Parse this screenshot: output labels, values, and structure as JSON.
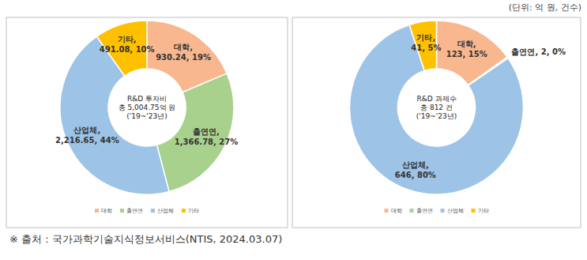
{
  "note": "(단위: 억 원, 건수)",
  "source": "※ 출처 : 국가과학기술지식정보서비스(NTIS, 2024.03.07)",
  "chart_data": [
    {
      "type": "pie",
      "center_text": [
        "R&D 투자비",
        "총 5,004.75억 원",
        "('19~'23년)"
      ],
      "categories": [
        "대학",
        "출연연",
        "산업체",
        "기타"
      ],
      "values": [
        930.24,
        1366.78,
        2216.65,
        491.08
      ],
      "value_labels": [
        "930.24",
        "1,366.78",
        "2,216.65",
        "491.08"
      ],
      "percents": [
        19,
        27,
        44,
        10
      ],
      "percent_labels": [
        "19%",
        "27%",
        "44%",
        "10%"
      ],
      "colors": [
        "#f8b78e",
        "#a9d18e",
        "#9dc3e6",
        "#ffc000"
      ],
      "data_labels": true,
      "legend": "bottom"
    },
    {
      "type": "pie",
      "center_text": [
        "R&D 과제수",
        "총 812 건",
        "('19~'23년)"
      ],
      "categories": [
        "대학",
        "출연연",
        "산업체",
        "기타"
      ],
      "values": [
        123,
        2,
        646,
        41
      ],
      "percents": [
        15,
        0,
        80,
        5
      ],
      "percent_labels": [
        "15%",
        "0%",
        "80%",
        "5%"
      ],
      "colors": [
        "#f8b78e",
        "#a9d18e",
        "#9dc3e6",
        "#ffc000"
      ],
      "data_labels": true,
      "legend": "bottom"
    }
  ]
}
